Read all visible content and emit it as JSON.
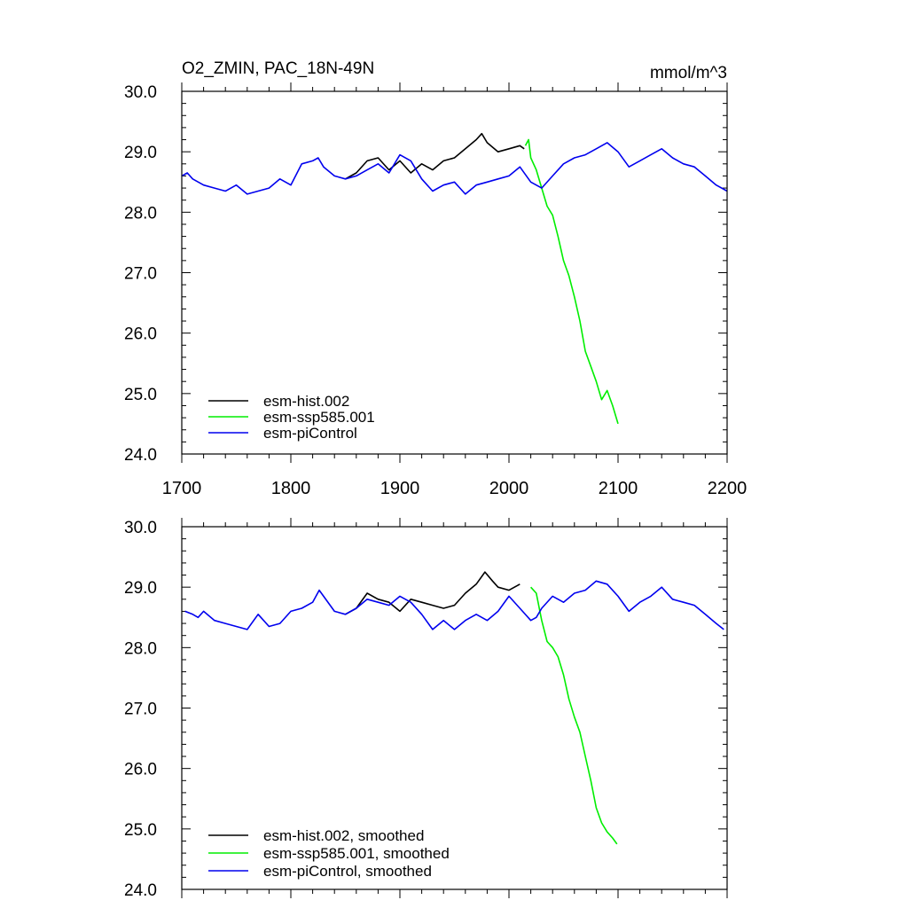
{
  "chart_data": [
    {
      "type": "line",
      "title_left": "O2_ZMIN, PAC_18N-49N",
      "title_right": "mmol/m^3",
      "xlim": [
        1700,
        2200
      ],
      "ylim": [
        24.0,
        30.0
      ],
      "x_ticks": [
        1700,
        1800,
        1900,
        2000,
        2100,
        2200
      ],
      "x_tick_labels": [
        "1700",
        "1800",
        "1900",
        "2000",
        "2100",
        "2200"
      ],
      "y_ticks": [
        24.0,
        25.0,
        26.0,
        27.0,
        28.0,
        29.0,
        30.0
      ],
      "y_tick_labels": [
        "24.0",
        "25.0",
        "26.0",
        "27.0",
        "28.0",
        "29.0",
        "30.0"
      ],
      "legend": [
        "esm-hist.002",
        "esm-ssp585.001",
        "esm-piControl"
      ],
      "legend_position": "bottom-left",
      "series": [
        {
          "name": "esm-hist.002",
          "color": "#000000",
          "x": [
            1850,
            1860,
            1870,
            1880,
            1890,
            1900,
            1910,
            1920,
            1930,
            1940,
            1950,
            1960,
            1970,
            1975,
            1980,
            1990,
            2000,
            2010,
            2014
          ],
          "y": [
            28.55,
            28.65,
            28.85,
            28.9,
            28.7,
            28.85,
            28.65,
            28.8,
            28.7,
            28.85,
            28.9,
            29.05,
            29.2,
            29.3,
            29.15,
            29.0,
            29.05,
            29.1,
            29.05
          ]
        },
        {
          "name": "esm-ssp585.001",
          "color": "#00ee00",
          "x": [
            2015,
            2018,
            2020,
            2025,
            2030,
            2035,
            2040,
            2045,
            2050,
            2055,
            2060,
            2065,
            2070,
            2075,
            2080,
            2085,
            2090,
            2095,
            2100
          ],
          "y": [
            29.1,
            29.2,
            28.9,
            28.7,
            28.4,
            28.1,
            27.95,
            27.6,
            27.2,
            26.95,
            26.6,
            26.2,
            25.7,
            25.45,
            25.2,
            24.9,
            25.05,
            24.8,
            24.5
          ]
        },
        {
          "name": "esm-piControl",
          "color": "#0000ee",
          "x": [
            1700,
            1705,
            1710,
            1720,
            1730,
            1740,
            1750,
            1760,
            1770,
            1780,
            1790,
            1800,
            1810,
            1820,
            1825,
            1830,
            1840,
            1850,
            1860,
            1870,
            1880,
            1890,
            1900,
            1910,
            1920,
            1930,
            1940,
            1950,
            1960,
            1970,
            1980,
            1990,
            2000,
            2010,
            2020,
            2030,
            2040,
            2050,
            2060,
            2070,
            2080,
            2090,
            2100,
            2110,
            2120,
            2130,
            2140,
            2150,
            2160,
            2170,
            2180,
            2190,
            2200
          ],
          "y": [
            28.6,
            28.65,
            28.55,
            28.45,
            28.4,
            28.35,
            28.45,
            28.3,
            28.35,
            28.4,
            28.55,
            28.45,
            28.8,
            28.85,
            28.9,
            28.75,
            28.6,
            28.55,
            28.6,
            28.7,
            28.8,
            28.65,
            28.95,
            28.85,
            28.55,
            28.35,
            28.45,
            28.5,
            28.3,
            28.45,
            28.5,
            28.55,
            28.6,
            28.75,
            28.5,
            28.4,
            28.6,
            28.8,
            28.9,
            28.95,
            29.05,
            29.15,
            29.0,
            28.75,
            28.85,
            28.95,
            29.05,
            28.9,
            28.8,
            28.75,
            28.6,
            28.45,
            28.35
          ]
        }
      ]
    },
    {
      "type": "line",
      "xlim": [
        1700,
        2200
      ],
      "ylim": [
        24.0,
        30.0
      ],
      "x_ticks": [
        1700,
        1800,
        1900,
        2000,
        2100,
        2200
      ],
      "y_ticks": [
        24.0,
        25.0,
        26.0,
        27.0,
        28.0,
        29.0,
        30.0
      ],
      "y_tick_labels": [
        "24.0",
        "25.0",
        "26.0",
        "27.0",
        "28.0",
        "29.0",
        "30.0"
      ],
      "legend": [
        "esm-hist.002, smoothed",
        "esm-ssp585.001, smoothed",
        "esm-piControl, smoothed"
      ],
      "legend_position": "bottom-left",
      "series": [
        {
          "name": "esm-hist.002, smoothed",
          "color": "#000000",
          "x": [
            1850,
            1860,
            1870,
            1880,
            1890,
            1900,
            1910,
            1920,
            1930,
            1940,
            1950,
            1960,
            1970,
            1978,
            1985,
            1990,
            2000,
            2010
          ],
          "y": [
            28.55,
            28.65,
            28.9,
            28.8,
            28.75,
            28.6,
            28.8,
            28.75,
            28.7,
            28.65,
            28.7,
            28.9,
            29.05,
            29.25,
            29.1,
            29.0,
            28.95,
            29.05
          ]
        },
        {
          "name": "esm-ssp585.001, smoothed",
          "color": "#00ee00",
          "x": [
            2020,
            2025,
            2030,
            2035,
            2040,
            2045,
            2050,
            2055,
            2060,
            2065,
            2070,
            2075,
            2080,
            2085,
            2090,
            2095,
            2099
          ],
          "y": [
            29.0,
            28.9,
            28.45,
            28.1,
            28.0,
            27.85,
            27.55,
            27.15,
            26.85,
            26.6,
            26.2,
            25.8,
            25.35,
            25.1,
            24.95,
            24.85,
            24.75
          ]
        },
        {
          "name": "esm-piControl, smoothed",
          "color": "#0000ee",
          "x": [
            1703,
            1710,
            1715,
            1720,
            1730,
            1740,
            1750,
            1760,
            1770,
            1775,
            1780,
            1790,
            1800,
            1810,
            1820,
            1826,
            1830,
            1840,
            1850,
            1860,
            1870,
            1880,
            1890,
            1900,
            1910,
            1920,
            1930,
            1940,
            1950,
            1960,
            1970,
            1980,
            1990,
            2000,
            2010,
            2020,
            2025,
            2030,
            2040,
            2050,
            2060,
            2070,
            2080,
            2090,
            2100,
            2110,
            2120,
            2130,
            2140,
            2150,
            2160,
            2170,
            2180,
            2190,
            2197
          ],
          "y": [
            28.6,
            28.55,
            28.5,
            28.6,
            28.45,
            28.4,
            28.35,
            28.3,
            28.55,
            28.45,
            28.35,
            28.4,
            28.6,
            28.65,
            28.75,
            28.95,
            28.85,
            28.6,
            28.55,
            28.65,
            28.8,
            28.75,
            28.7,
            28.85,
            28.75,
            28.55,
            28.3,
            28.45,
            28.3,
            28.45,
            28.55,
            28.45,
            28.6,
            28.85,
            28.65,
            28.45,
            28.5,
            28.65,
            28.85,
            28.75,
            28.9,
            28.95,
            29.1,
            29.05,
            28.85,
            28.6,
            28.75,
            28.85,
            29.0,
            28.8,
            28.75,
            28.7,
            28.55,
            28.4,
            28.3
          ]
        }
      ]
    }
  ]
}
